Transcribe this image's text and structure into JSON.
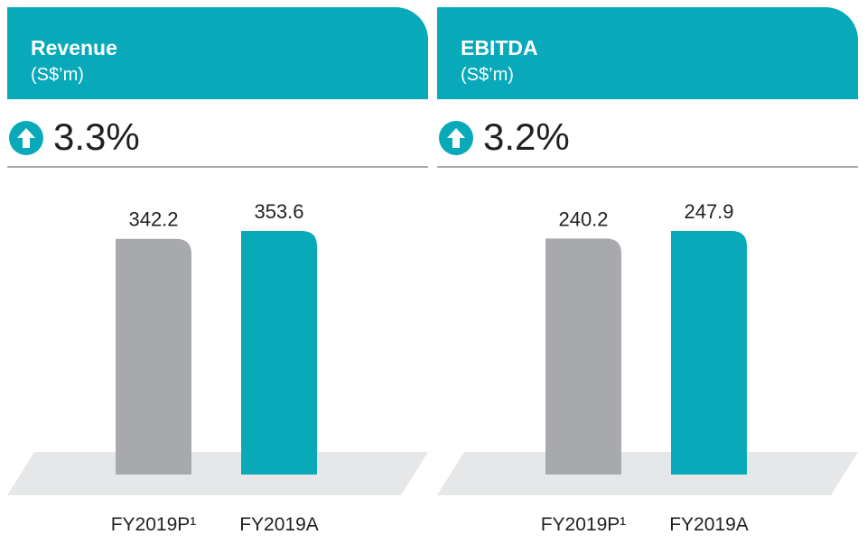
{
  "chart_data": [
    {
      "type": "bar",
      "title": "Revenue",
      "unit": "(S$’m)",
      "change": "3.3%",
      "categories": [
        "FY2019P¹",
        "FY2019A"
      ],
      "values": [
        342.2,
        353.6
      ],
      "value_labels": [
        "342.2",
        "353.6"
      ],
      "colors": [
        "#a7a9ac",
        "#08a9b9"
      ]
    },
    {
      "type": "bar",
      "title": "EBITDA",
      "unit": "(S$’m)",
      "change": "3.2%",
      "categories": [
        "FY2019P¹",
        "FY2019A"
      ],
      "values": [
        240.2,
        247.9
      ],
      "value_labels": [
        "240.2",
        "247.9"
      ],
      "colors": [
        "#a7a9ac",
        "#08a9b9"
      ]
    }
  ],
  "colors": {
    "accent": "#08a9b9",
    "bar_grey": "#a7a9ac",
    "floor": "#e6e7e8",
    "text": "#231f20"
  },
  "icons": {
    "change": "arrow-up-circle-icon"
  }
}
